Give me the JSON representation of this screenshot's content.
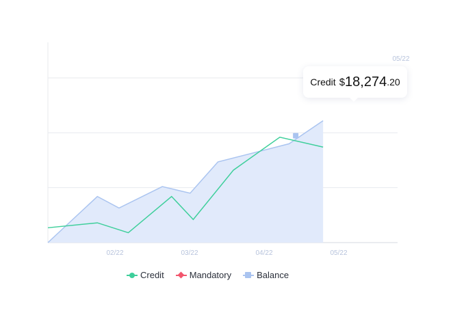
{
  "chart_data": {
    "type": "line",
    "x": [
      0,
      0.8,
      1.2,
      1.8,
      2.0,
      2.3,
      2.8,
      3.3,
      4.0,
      4.8,
      5.2,
      5.4
    ],
    "x_ticks": [
      "02/22",
      "03/22",
      "04/22",
      "05/22"
    ],
    "top_tick": "05/22",
    "xlim": [
      0,
      5.4
    ],
    "ylim": [
      0,
      100
    ],
    "grid": true,
    "legend_position": "bottom",
    "series": [
      {
        "name": "Credit",
        "type": "line",
        "color": "#3ecf9b",
        "marker": "circle",
        "points": [
          [
            0,
            9
          ],
          [
            0.8,
            12
          ],
          [
            1.3,
            6
          ],
          [
            2.0,
            28
          ],
          [
            2.35,
            14
          ],
          [
            3.0,
            44
          ],
          [
            3.75,
            64
          ],
          [
            4.45,
            58
          ]
        ]
      },
      {
        "name": "Mandatory",
        "type": "line",
        "color": "#f2566d",
        "marker": "diamond",
        "points": []
      },
      {
        "name": "Balance",
        "type": "area",
        "color": "#aac4f0",
        "fill": "#e1eafb",
        "marker": "square",
        "points": [
          [
            0,
            0
          ],
          [
            0.8,
            28
          ],
          [
            1.15,
            21
          ],
          [
            1.85,
            34
          ],
          [
            2.3,
            30
          ],
          [
            2.75,
            49
          ],
          [
            3.9,
            60
          ],
          [
            4.45,
            74
          ]
        ]
      }
    ]
  },
  "tooltip": {
    "series_label": "Credit",
    "currency": "$",
    "integer_part": "18,274",
    "decimal_part": ".20"
  },
  "legend": {
    "items": [
      {
        "label": "Credit",
        "color": "#3ecf9b",
        "marker": "circle"
      },
      {
        "label": "Mandatory",
        "color": "#f2566d",
        "marker": "diamond"
      },
      {
        "label": "Balance",
        "color": "#aac4f0",
        "marker": "square"
      }
    ]
  }
}
